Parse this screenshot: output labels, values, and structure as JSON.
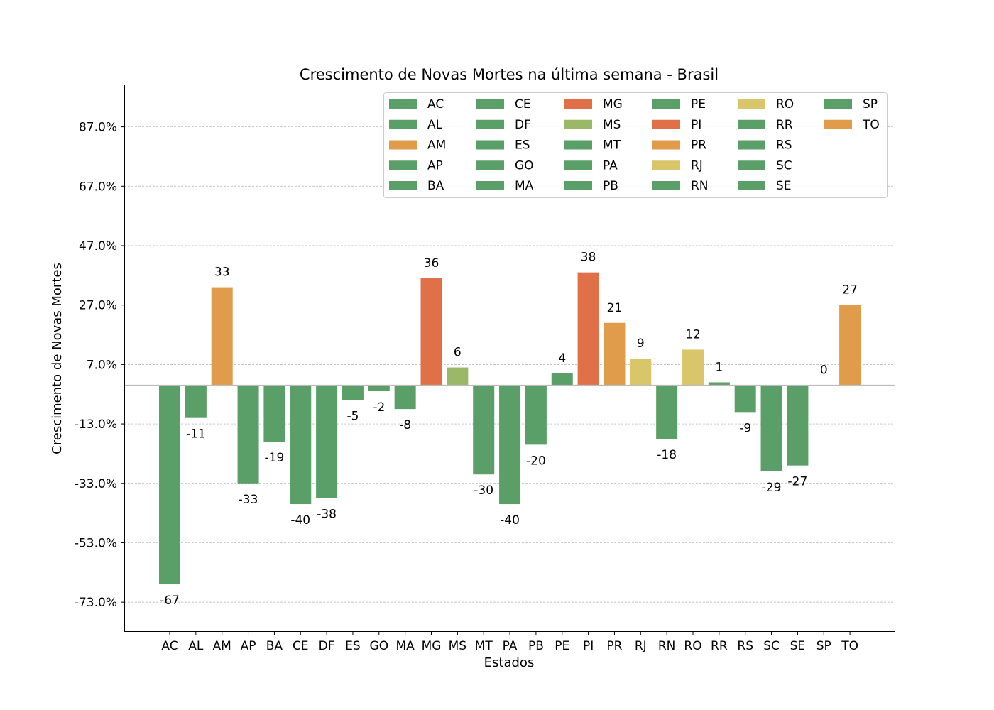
{
  "chart_data": {
    "type": "bar",
    "title": "Crescimento de Novas Mortes na última semana - Brasil",
    "xlabel": "Estados",
    "ylabel": "Crescimento de Novas Mortes",
    "categories": [
      "AC",
      "AL",
      "AM",
      "AP",
      "BA",
      "CE",
      "DF",
      "ES",
      "GO",
      "MA",
      "MG",
      "MS",
      "MT",
      "PA",
      "PB",
      "PE",
      "PI",
      "PR",
      "RJ",
      "RN",
      "RO",
      "RR",
      "RS",
      "SC",
      "SE",
      "SP",
      "TO"
    ],
    "values": [
      -67,
      -11,
      33,
      -33,
      -19,
      -40,
      -38,
      -5,
      -2,
      -8,
      36,
      6,
      -30,
      -40,
      -20,
      4,
      38,
      21,
      9,
      -18,
      12,
      1,
      -9,
      -29,
      -27,
      0,
      27
    ],
    "data_labels": [
      "-67",
      "-11",
      "33",
      "-33",
      "-19",
      "-40",
      "-38",
      "-5",
      "-2",
      "-8",
      "36",
      "6",
      "-30",
      "-40",
      "-20",
      "4",
      "38",
      "21",
      "9",
      "-18",
      "12",
      "1",
      "-9",
      "-29",
      "-27",
      "0",
      "27"
    ],
    "colors": [
      "#5a9f67",
      "#5a9f67",
      "#e09c4b",
      "#5a9f67",
      "#5a9f67",
      "#5a9f67",
      "#5a9f67",
      "#5a9f67",
      "#5a9f67",
      "#5a9f67",
      "#e07048",
      "#9bb868",
      "#5a9f67",
      "#5a9f67",
      "#5a9f67",
      "#5a9f67",
      "#e07048",
      "#e09c4b",
      "#d9c56a",
      "#5a9f67",
      "#d9c56a",
      "#5a9f67",
      "#5a9f67",
      "#5a9f67",
      "#5a9f67",
      "#5a9f67",
      "#e09c4b"
    ],
    "yticks": [
      87,
      67,
      47,
      27,
      7,
      -13,
      -33,
      -53,
      -73
    ],
    "ytick_labels": [
      "87.0%",
      "67.0%",
      "47.0%",
      "27.0%",
      "7.0%",
      "-13.0%",
      "-33.0%",
      "-53.0%",
      "-73.0%"
    ],
    "ylim": [
      -83,
      101
    ],
    "grid": true,
    "legend_placement": "top-right",
    "legend_columns": 6
  }
}
